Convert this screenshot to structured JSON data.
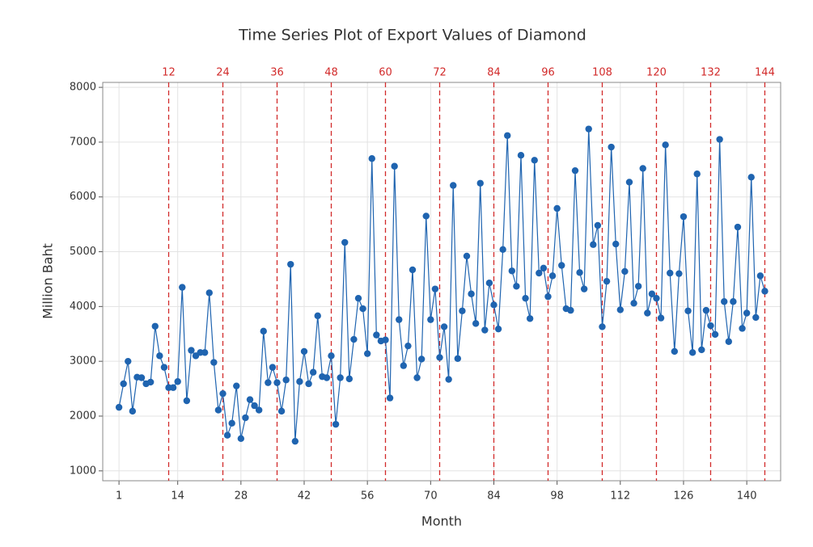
{
  "chart_data": {
    "type": "line",
    "title": "Time Series Plot of Export Values of Diamond",
    "x_label": "Month",
    "y_label": "Million Baht",
    "x": [
      1,
      2,
      3,
      4,
      5,
      6,
      7,
      8,
      9,
      10,
      11,
      12,
      13,
      14,
      15,
      16,
      17,
      18,
      19,
      20,
      21,
      22,
      23,
      24,
      25,
      26,
      27,
      28,
      29,
      30,
      31,
      32,
      33,
      34,
      35,
      36,
      37,
      38,
      39,
      40,
      41,
      42,
      43,
      44,
      45,
      46,
      47,
      48,
      49,
      50,
      51,
      52,
      53,
      54,
      55,
      56,
      57,
      58,
      59,
      60,
      61,
      62,
      63,
      64,
      65,
      66,
      67,
      68,
      69,
      70,
      71,
      72,
      73,
      74,
      75,
      76,
      77,
      78,
      79,
      80,
      81,
      82,
      83,
      84,
      85,
      86,
      87,
      88,
      89,
      90,
      91,
      92,
      93,
      94,
      95,
      96,
      97,
      98,
      99,
      100,
      101,
      102,
      103,
      104,
      105,
      106,
      107,
      108,
      109,
      110,
      111,
      112,
      113,
      114,
      115,
      116,
      117,
      118,
      119,
      120,
      121,
      122,
      123,
      124,
      125,
      126,
      127,
      128,
      129,
      130,
      131,
      132,
      133,
      134,
      135,
      136,
      137,
      138,
      139,
      140,
      141,
      142,
      143,
      144
    ],
    "series": [
      {
        "color": "#1f64b0",
        "values": [
          2160,
          2590,
          3000,
          2090,
          2710,
          2700,
          2590,
          2620,
          3640,
          3100,
          2890,
          2520,
          2520,
          2630,
          4350,
          2280,
          3200,
          3100,
          3160,
          3160,
          4250,
          2980,
          2110,
          2410,
          1650,
          1870,
          2550,
          1590,
          1970,
          2300,
          2190,
          2110,
          3550,
          2610,
          2890,
          2610,
          2090,
          2660,
          4770,
          1540,
          2630,
          3180,
          2590,
          2800,
          3830,
          2720,
          2700,
          3100,
          1850,
          2700,
          5170,
          2680,
          3400,
          4150,
          3960,
          3140,
          6700,
          3480,
          3370,
          3390,
          2330,
          6560,
          3760,
          2920,
          3280,
          4670,
          2700,
          3040,
          5650,
          3760,
          4320,
          3070,
          3630,
          2670,
          6210,
          3050,
          3920,
          4920,
          4230,
          3690,
          6250,
          3570,
          4430,
          4030,
          3590,
          5040,
          7120,
          4650,
          4370,
          6760,
          4150,
          3780,
          6670,
          4610,
          4700,
          4180,
          4560,
          5790,
          4750,
          3960,
          3930,
          6480,
          4620,
          4320,
          7240,
          5130,
          5480,
          3630,
          4460,
          6910,
          5140,
          3940,
          4640,
          6270,
          4060,
          4370,
          6520,
          3880,
          4230,
          4150,
          3790,
          6950,
          4610,
          3180,
          4600,
          5640,
          3920,
          3160,
          6420,
          3210,
          3930,
          3650,
          3490,
          7050,
          4090,
          3360,
          4090,
          5450,
          3600,
          3880,
          6360,
          3800,
          4560,
          4280
        ]
      }
    ],
    "xlim": [
      -2.6,
      147.5
    ],
    "ylim": [
      820,
      8090
    ],
    "xticks": [
      1,
      14,
      28,
      42,
      56,
      70,
      84,
      98,
      112,
      126,
      140
    ],
    "yticks": [
      1000,
      2000,
      3000,
      4000,
      5000,
      6000,
      7000,
      8000
    ],
    "vlines": [
      12,
      24,
      36,
      48,
      60,
      72,
      84,
      96,
      108,
      120,
      132,
      144
    ],
    "vline_color": "#d22b2b",
    "grid": true
  }
}
